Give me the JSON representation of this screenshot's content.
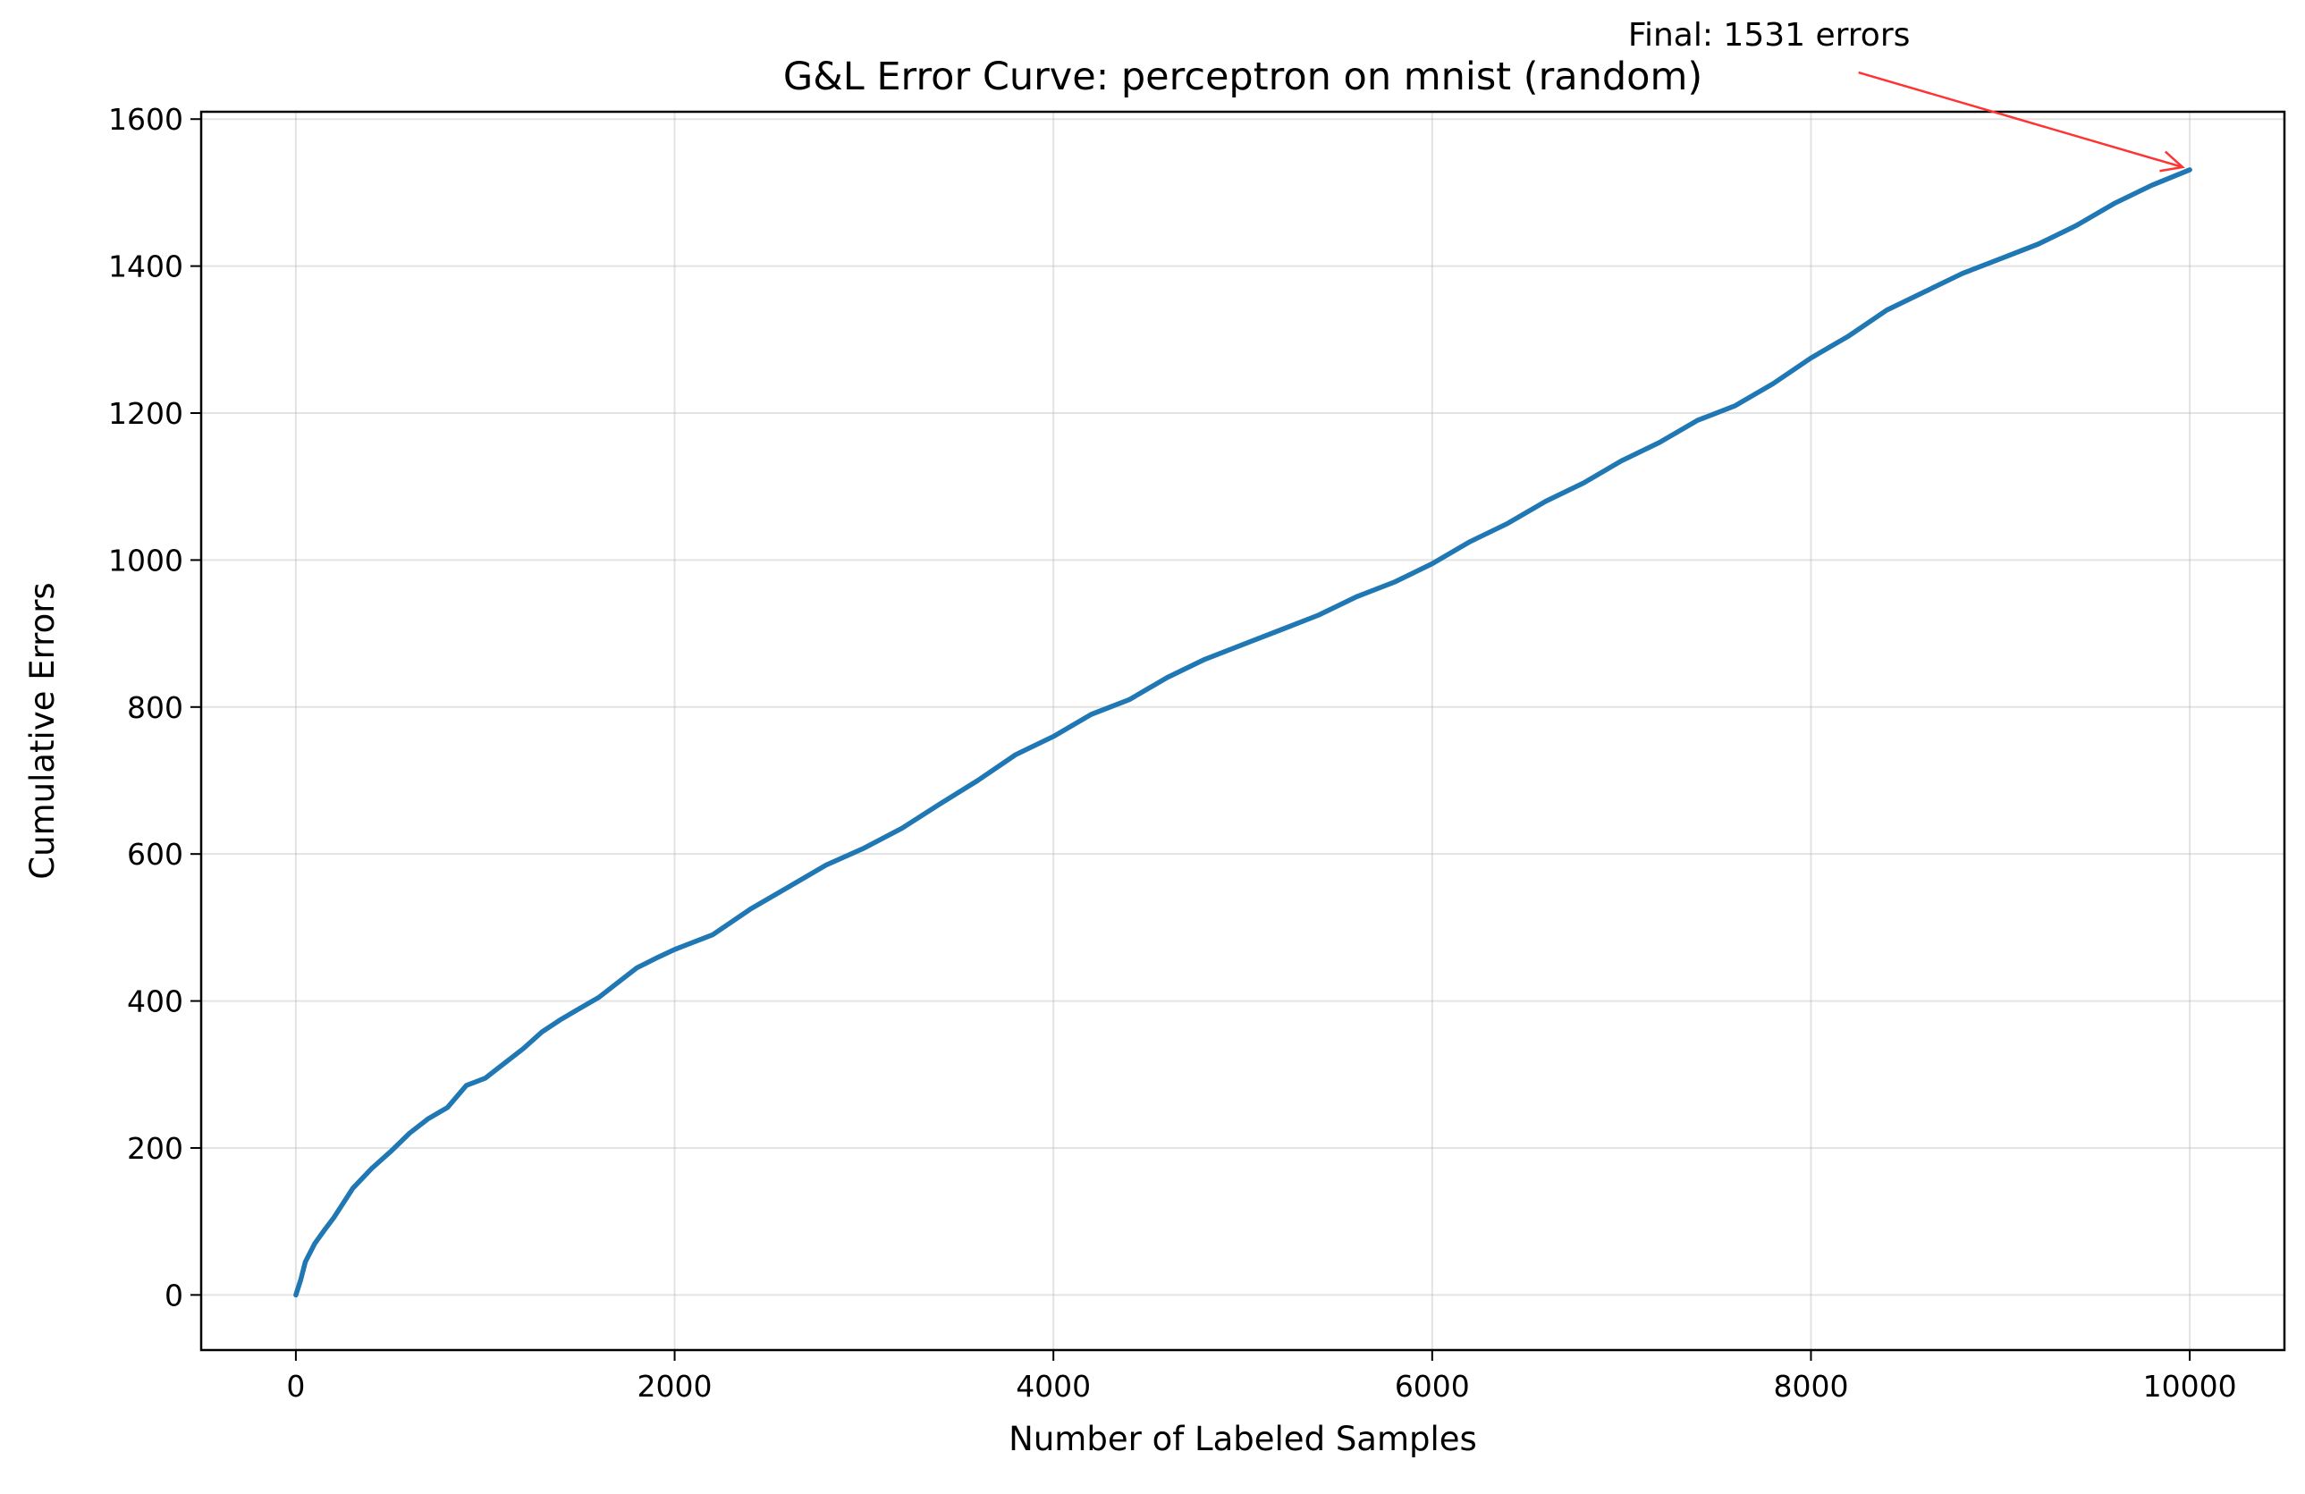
{
  "chart_data": {
    "type": "line",
    "title": "G&L Error Curve: perceptron on mnist (random)",
    "xlabel": "Number of Labeled Samples",
    "ylabel": "Cumulative Errors",
    "xlim": [
      -500,
      10500
    ],
    "ylim": [
      -75,
      1610
    ],
    "xticks": [
      0,
      2000,
      4000,
      6000,
      8000,
      10000
    ],
    "xtick_labels": [
      "0",
      "2000",
      "4000",
      "6000",
      "8000",
      "10000"
    ],
    "yticks": [
      0,
      200,
      400,
      600,
      800,
      1000,
      1200,
      1400,
      1600
    ],
    "ytick_labels": [
      "0",
      "200",
      "400",
      "600",
      "800",
      "1000",
      "1200",
      "1400",
      "1600"
    ],
    "grid": true,
    "series": [
      {
        "color": "#1f77b4",
        "x": [
          0,
          25,
          50,
          100,
          150,
          200,
          250,
          300,
          400,
          500,
          600,
          700,
          800,
          900,
          1000,
          1100,
          1200,
          1300,
          1400,
          1500,
          1600,
          1700,
          1800,
          1900,
          2000,
          2200,
          2400,
          2600,
          2800,
          3000,
          3200,
          3400,
          3600,
          3800,
          4000,
          4200,
          4400,
          4600,
          4800,
          5000,
          5200,
          5400,
          5600,
          5800,
          6000,
          6200,
          6400,
          6600,
          6800,
          7000,
          7200,
          7400,
          7600,
          7800,
          8000,
          8200,
          8400,
          8600,
          8800,
          9000,
          9200,
          9400,
          9600,
          9800,
          10000
        ],
        "y": [
          0,
          20,
          45,
          70,
          88,
          105,
          125,
          145,
          172,
          195,
          220,
          240,
          255,
          285,
          295,
          315,
          335,
          358,
          375,
          390,
          405,
          425,
          445,
          458,
          470,
          490,
          525,
          555,
          585,
          608,
          635,
          668,
          700,
          735,
          760,
          790,
          810,
          840,
          865,
          885,
          905,
          925,
          950,
          970,
          995,
          1025,
          1050,
          1080,
          1105,
          1135,
          1160,
          1190,
          1210,
          1240,
          1275,
          1305,
          1340,
          1365,
          1390,
          1410,
          1430,
          1455,
          1485,
          1510,
          1531
        ]
      }
    ],
    "annotation": {
      "text": "Final: 1531 errors",
      "xy": [
        10000,
        1531
      ],
      "xytext": [
        7000,
        1700
      ],
      "arrow_color": "#ff3333"
    }
  }
}
